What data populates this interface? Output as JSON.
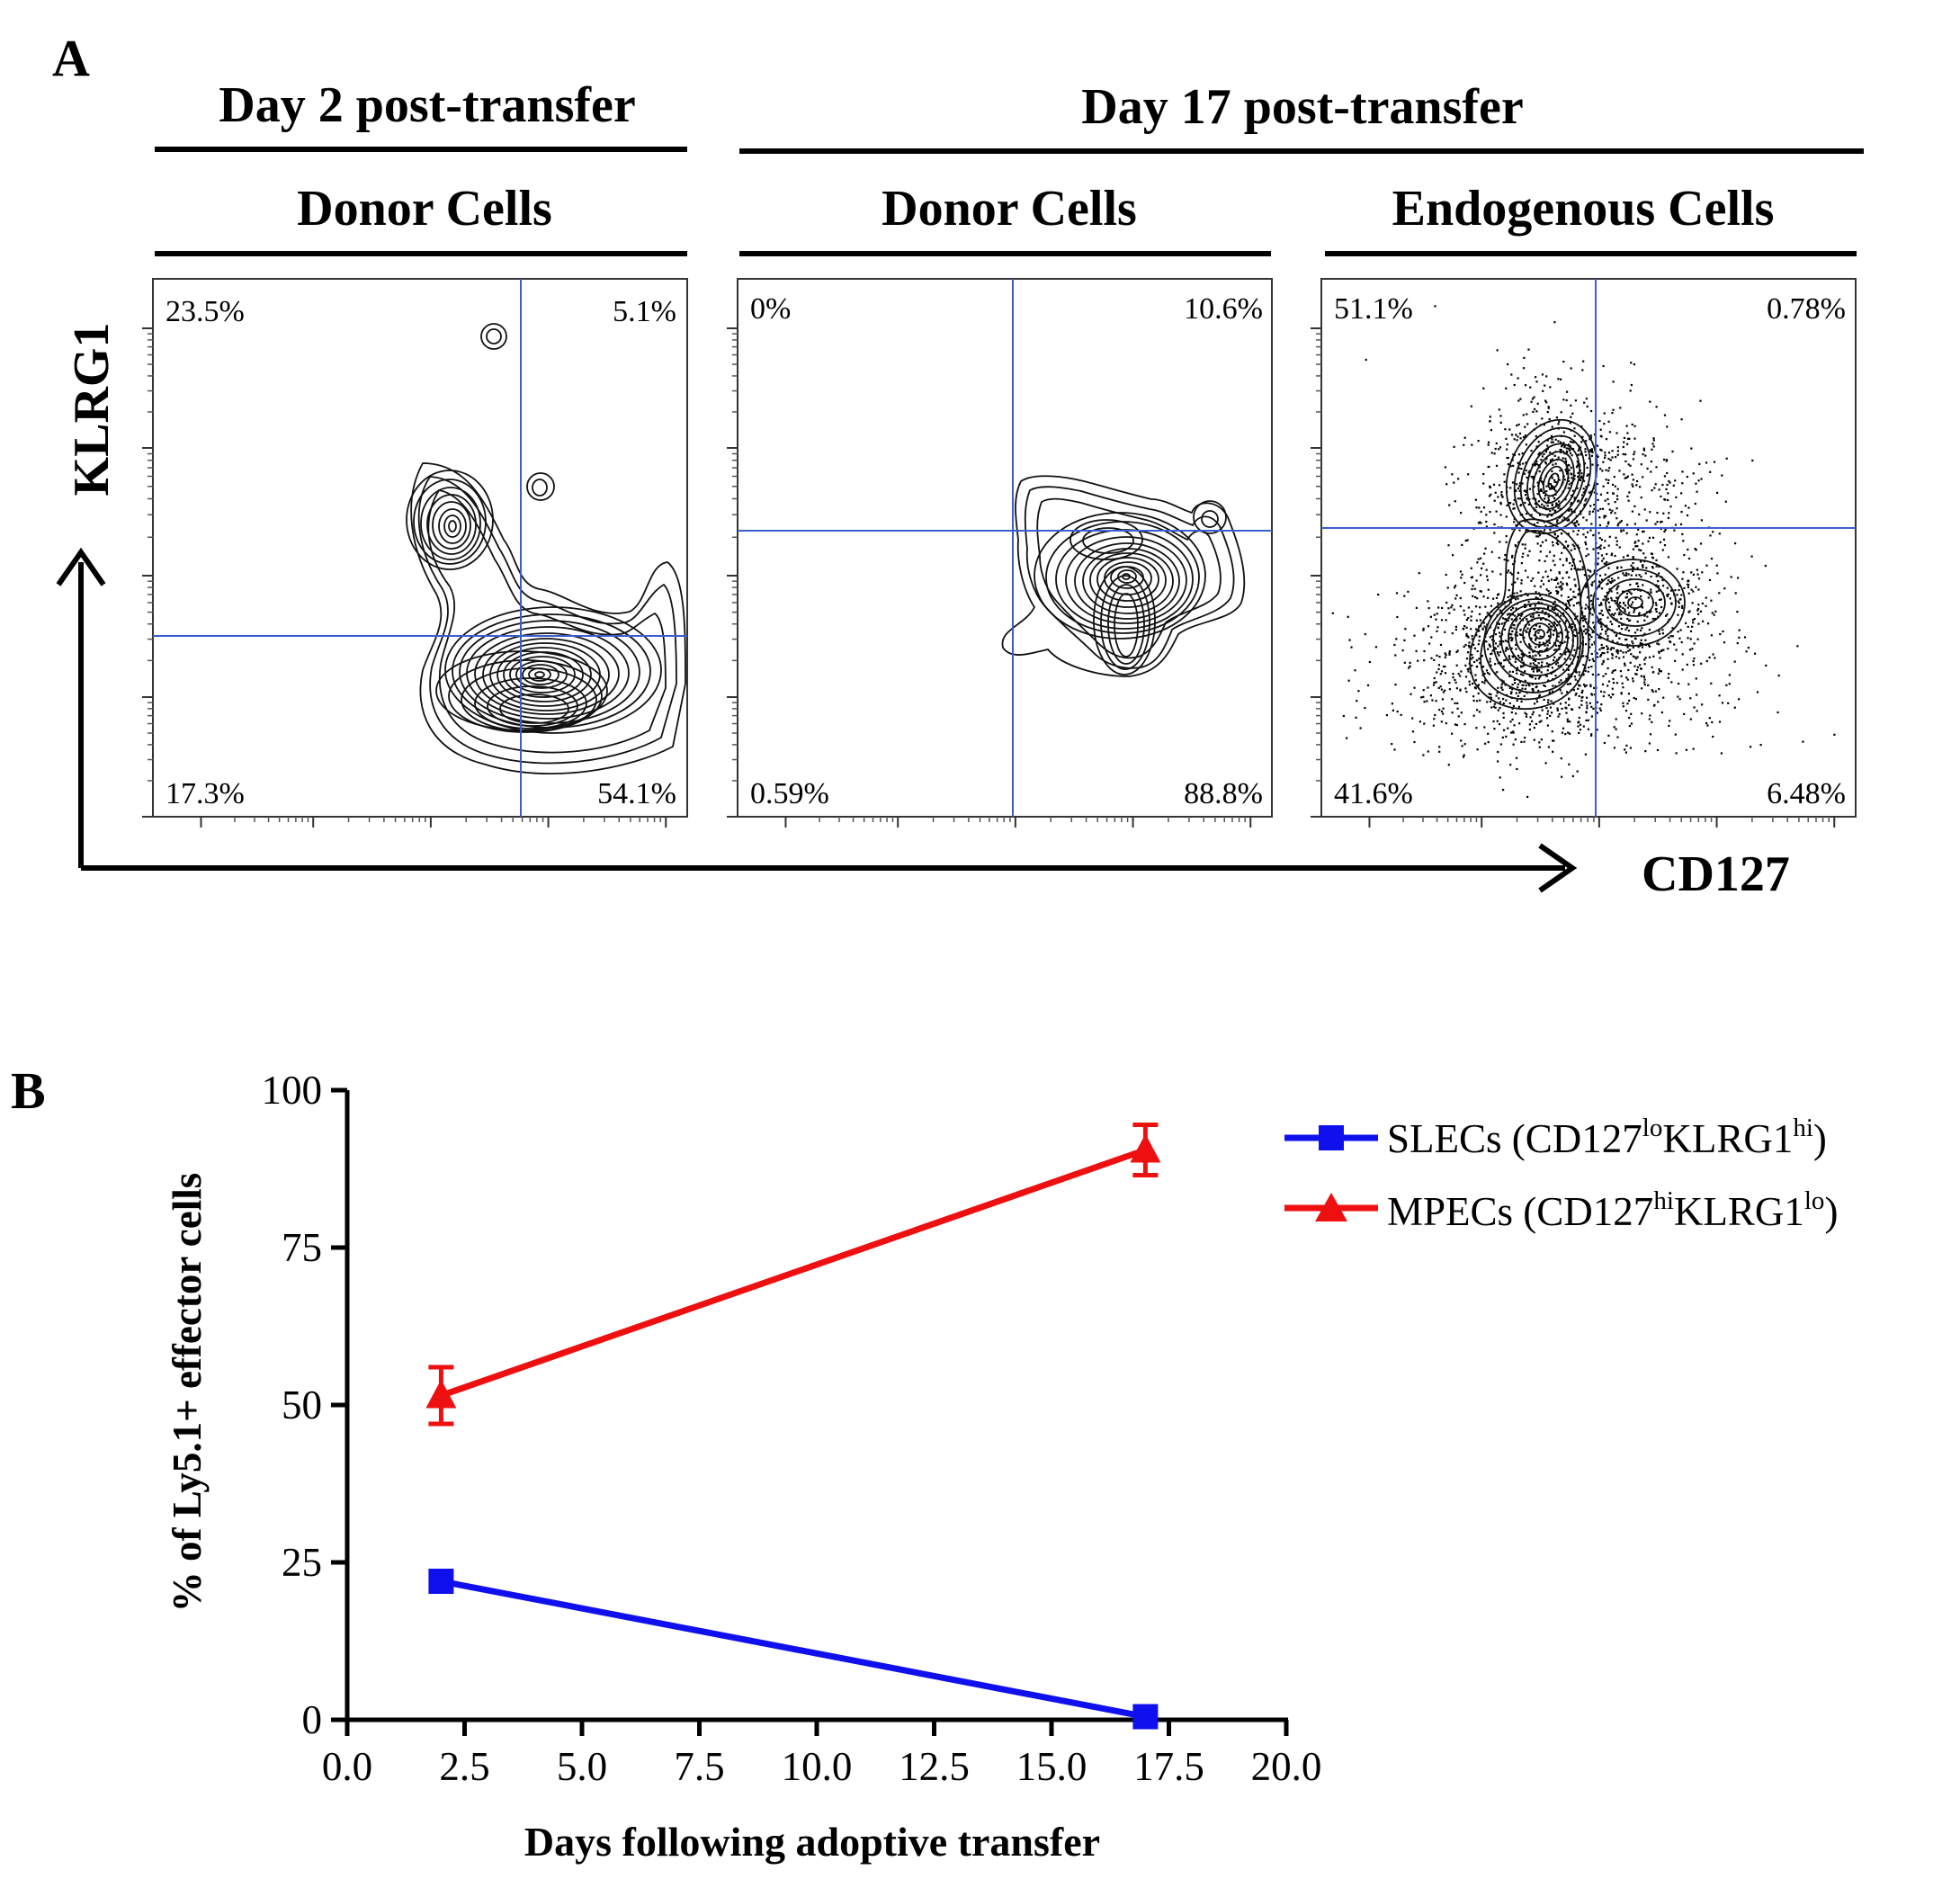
{
  "figure": {
    "panel_a_label": "A",
    "panel_b_label": "B",
    "group_day2": "Day 2 post-transfer",
    "group_day17": "Day 17 post-transfer",
    "sub_donor_1": "Donor Cells",
    "sub_donor_2": "Donor Cells",
    "sub_endogenous": "Endogenous Cells",
    "axis_y_a": "KLRG1",
    "axis_x_a": "CD127"
  },
  "flow_plots": [
    {
      "name": "day2-donor",
      "quadrants": {
        "ul": "23.5%",
        "ur": "5.1%",
        "ll": "17.3%",
        "lr": "54.1%"
      }
    },
    {
      "name": "day17-donor",
      "quadrants": {
        "ul": "0%",
        "ur": "10.6%",
        "ll": "0.59%",
        "lr": "88.8%"
      }
    },
    {
      "name": "day17-endogenous",
      "quadrants": {
        "ul": "51.1%",
        "ur": "0.78%",
        "ll": "41.6%",
        "lr": "6.48%"
      }
    }
  ],
  "chart_data": {
    "type": "line",
    "xlabel": "Days following adoptive transfer",
    "ylabel": "% of Ly5.1+ effector cells",
    "xlim": [
      0,
      20
    ],
    "ylim": [
      0,
      100
    ],
    "xticks": [
      "0.0",
      "2.5",
      "5.0",
      "7.5",
      "10.0",
      "12.5",
      "15.0",
      "17.5",
      "20.0"
    ],
    "yticks": [
      "0",
      "25",
      "50",
      "75",
      "100"
    ],
    "series": [
      {
        "name": "SLECs",
        "legend": {
          "base": "SLECs (CD127",
          "sup1": "lo",
          "mid": "KLRG1",
          "sup2": "hi",
          "end": ")"
        },
        "color": "#1010ee",
        "marker": "square",
        "x": [
          2,
          17
        ],
        "y": [
          22,
          0.5
        ],
        "err": [
          0,
          0
        ]
      },
      {
        "name": "MPECs",
        "legend": {
          "base": "MPECs (CD127",
          "sup1": "hi",
          "mid": "KLRG1",
          "sup2": "lo",
          "end": ")"
        },
        "color": "#ee1010",
        "marker": "triangle",
        "x": [
          2,
          17
        ],
        "y": [
          51.5,
          90.5
        ],
        "err": [
          4.5,
          4
        ]
      }
    ]
  }
}
